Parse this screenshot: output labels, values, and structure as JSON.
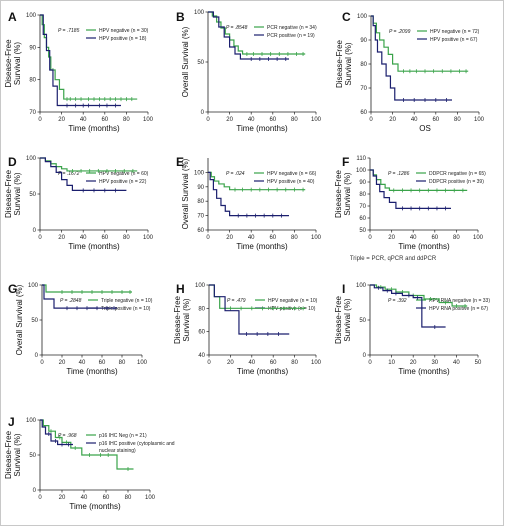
{
  "colors": {
    "green": "#3aa34a",
    "navy": "#1b1f6e",
    "axis": "#222222"
  },
  "panels": [
    {
      "letter": "A",
      "ylabel": [
        "Disease-Free",
        "Survival (%)"
      ],
      "xlabel": "Time (months)",
      "p": "P = .7185",
      "xticks": [
        0,
        20,
        40,
        60,
        80,
        100
      ],
      "yticks": [
        70,
        80,
        90,
        100
      ],
      "ylim": [
        70,
        100
      ],
      "legend": [
        "HPV negative (n = 30)",
        "HPV positive (n = 18)"
      ],
      "series": [
        {
          "color": "green",
          "steps": [
            [
              0,
              100
            ],
            [
              2,
              97
            ],
            [
              4,
              93
            ],
            [
              6,
              90
            ],
            [
              8,
              87
            ],
            [
              10,
              83
            ],
            [
              14,
              80
            ],
            [
              18,
              77
            ],
            [
              22,
              74
            ],
            [
              90,
              74
            ]
          ],
          "censor": [
            12,
            25,
            28,
            33,
            38,
            45,
            50,
            55,
            60,
            65,
            70,
            75,
            80,
            85
          ]
        },
        {
          "color": "navy",
          "steps": [
            [
              0,
              100
            ],
            [
              3,
              94
            ],
            [
              6,
              89
            ],
            [
              9,
              83
            ],
            [
              12,
              78
            ],
            [
              16,
              72
            ],
            [
              75,
              72
            ]
          ],
          "censor": [
            25,
            33,
            40,
            45,
            55,
            62,
            70
          ]
        }
      ]
    },
    {
      "letter": "B",
      "ylabel": [
        "Overall Survival (%)"
      ],
      "xlabel": "Time (months)",
      "p": "P = .8548",
      "xticks": [
        0,
        20,
        40,
        60,
        80,
        100
      ],
      "yticks": [
        0,
        50,
        100
      ],
      "ylim": [
        0,
        100
      ],
      "legend": [
        "PCR negative (n = 34)",
        "PCR positive (n = 19)"
      ],
      "series": [
        {
          "color": "green",
          "steps": [
            [
              0,
              100
            ],
            [
              4,
              96
            ],
            [
              8,
              90
            ],
            [
              12,
              84
            ],
            [
              16,
              78
            ],
            [
              20,
              72
            ],
            [
              24,
              66
            ],
            [
              28,
              61
            ],
            [
              32,
              58
            ],
            [
              90,
              58
            ]
          ],
          "censor": [
            36,
            42,
            50,
            58,
            66,
            74,
            82,
            88
          ]
        },
        {
          "color": "navy",
          "steps": [
            [
              0,
              100
            ],
            [
              5,
              95
            ],
            [
              10,
              85
            ],
            [
              15,
              75
            ],
            [
              20,
              65
            ],
            [
              25,
              58
            ],
            [
              30,
              53
            ],
            [
              75,
              53
            ]
          ],
          "censor": [
            40,
            48,
            56,
            64,
            72
          ]
        }
      ]
    },
    {
      "letter": "C",
      "ylabel": [
        "Disease-Free",
        "Survival (%)"
      ],
      "xlabel": "OS",
      "p": "P = .2099",
      "xticks": [
        0,
        20,
        40,
        60,
        80,
        100
      ],
      "yticks": [
        60,
        70,
        80,
        90,
        100
      ],
      "ylim": [
        60,
        100
      ],
      "legend": [
        "HPV negative (n = 72)",
        "HPV positive (n = 67)"
      ],
      "series": [
        {
          "color": "green",
          "steps": [
            [
              0,
              100
            ],
            [
              2,
              97
            ],
            [
              5,
              93
            ],
            [
              8,
              90
            ],
            [
              12,
              87
            ],
            [
              16,
              84
            ],
            [
              20,
              80
            ],
            [
              25,
              77
            ],
            [
              90,
              77
            ]
          ],
          "censor": [
            30,
            36,
            42,
            50,
            58,
            66,
            74,
            82,
            88
          ]
        },
        {
          "color": "navy",
          "steps": [
            [
              0,
              100
            ],
            [
              2,
              96
            ],
            [
              4,
              90
            ],
            [
              6,
              85
            ],
            [
              10,
              80
            ],
            [
              14,
              75
            ],
            [
              18,
              70
            ],
            [
              22,
              65
            ],
            [
              75,
              65
            ]
          ],
          "censor": [
            30,
            40,
            50,
            60,
            70
          ]
        }
      ]
    },
    {
      "letter": "D",
      "ylabel": [
        "Disease-Free",
        "Survival (%)"
      ],
      "xlabel": "Time (months)",
      "p": "P = .1672",
      "xticks": [
        0,
        20,
        40,
        60,
        80,
        100
      ],
      "yticks": [
        0,
        50,
        100
      ],
      "ylim": [
        0,
        100
      ],
      "legend": [
        "HPV negative (n = 60)",
        "HPV positive (n = 22)"
      ],
      "series": [
        {
          "color": "green",
          "steps": [
            [
              0,
              100
            ],
            [
              5,
              96
            ],
            [
              10,
              92
            ],
            [
              15,
              88
            ],
            [
              20,
              85
            ],
            [
              25,
              82
            ],
            [
              90,
              82
            ]
          ],
          "censor": [
            30,
            38,
            46,
            54,
            62,
            70,
            78,
            86
          ]
        },
        {
          "color": "navy",
          "steps": [
            [
              0,
              100
            ],
            [
              5,
              95
            ],
            [
              10,
              88
            ],
            [
              15,
              80
            ],
            [
              20,
              70
            ],
            [
              25,
              62
            ],
            [
              30,
              55
            ],
            [
              80,
              55
            ]
          ],
          "censor": [
            40,
            50,
            60,
            70
          ]
        }
      ]
    },
    {
      "letter": "E",
      "ylabel": [
        "Overall Survival (%)"
      ],
      "xlabel": "Time (months)",
      "p": "P = .024",
      "xticks": [
        0,
        20,
        40,
        60,
        80,
        100
      ],
      "yticks": [
        60,
        70,
        80,
        90,
        100
      ],
      "ylim": [
        60,
        110
      ],
      "legend": [
        "HPV negative (n = 66)",
        "HPV positive (n = 40)"
      ],
      "series": [
        {
          "color": "green",
          "steps": [
            [
              0,
              100
            ],
            [
              3,
              97
            ],
            [
              6,
              94
            ],
            [
              10,
              92
            ],
            [
              15,
              90
            ],
            [
              20,
              88
            ],
            [
              90,
              88
            ]
          ],
          "censor": [
            25,
            32,
            40,
            48,
            56,
            64,
            72,
            80,
            88
          ]
        },
        {
          "color": "navy",
          "steps": [
            [
              0,
              100
            ],
            [
              2,
              95
            ],
            [
              5,
              88
            ],
            [
              8,
              82
            ],
            [
              12,
              77
            ],
            [
              16,
              73
            ],
            [
              20,
              70
            ],
            [
              75,
              70
            ]
          ],
          "censor": [
            28,
            36,
            44,
            52,
            60,
            68
          ]
        }
      ]
    },
    {
      "letter": "F",
      "ylabel": [
        "Disease-Free",
        "Survival (%)"
      ],
      "xlabel": "Time (months)",
      "p": "P = .1286",
      "xticks": [
        0,
        20,
        40,
        60,
        80,
        100
      ],
      "yticks": [
        50,
        60,
        70,
        80,
        90,
        100,
        110
      ],
      "ylim": [
        50,
        110
      ],
      "legend": [
        "DDPCR negative (n = 65)",
        "DDPCR positive (n = 39)"
      ],
      "series": [
        {
          "color": "green",
          "steps": [
            [
              0,
              100
            ],
            [
              3,
              96
            ],
            [
              6,
              92
            ],
            [
              10,
              88
            ],
            [
              14,
              85
            ],
            [
              18,
              83
            ],
            [
              90,
              83
            ]
          ],
          "censor": [
            22,
            30,
            38,
            46,
            54,
            62,
            70,
            78,
            86
          ]
        },
        {
          "color": "navy",
          "steps": [
            [
              0,
              100
            ],
            [
              3,
              95
            ],
            [
              6,
              88
            ],
            [
              9,
              82
            ],
            [
              13,
              77
            ],
            [
              18,
              73
            ],
            [
              24,
              68
            ],
            [
              75,
              68
            ]
          ],
          "censor": [
            30,
            38,
            46,
            54,
            62,
            70
          ]
        }
      ]
    },
    {
      "letter": "G",
      "ylabel": [
        "Overall Survival (%)"
      ],
      "xlabel": "Time (months)",
      "p": "P = .2848",
      "xticks": [
        0,
        20,
        40,
        60,
        80,
        100
      ],
      "yticks": [
        0,
        50,
        100
      ],
      "ylim": [
        0,
        100
      ],
      "legend": [
        "Triple negative (n = 10)",
        "Triple positive (n = 10)"
      ],
      "series": [
        {
          "color": "green",
          "steps": [
            [
              0,
              100
            ],
            [
              4,
              90
            ],
            [
              90,
              90
            ]
          ],
          "censor": [
            20,
            30,
            40,
            50,
            60,
            70,
            80,
            88
          ]
        },
        {
          "color": "navy",
          "steps": [
            [
              0,
              100
            ],
            [
              2,
              80
            ],
            [
              12,
              67
            ],
            [
              75,
              67
            ]
          ],
          "censor": [
            25,
            35,
            45,
            55,
            65,
            72
          ]
        }
      ]
    },
    {
      "letter": "H",
      "ylabel": [
        "Disease-Free",
        "Survival (%)"
      ],
      "xlabel": "Time (months)",
      "p": "P = .479",
      "xticks": [
        0,
        20,
        40,
        60,
        80,
        100
      ],
      "yticks": [
        40,
        60,
        80,
        100
      ],
      "ylim": [
        40,
        100
      ],
      "legend": [
        "HPV negative (n = 10)",
        "HPV positive (n = 10)"
      ],
      "series": [
        {
          "color": "green",
          "steps": [
            [
              0,
              100
            ],
            [
              5,
              90
            ],
            [
              10,
              80
            ],
            [
              90,
              80
            ]
          ],
          "censor": [
            20,
            30,
            40,
            50,
            60,
            70,
            80,
            88
          ]
        },
        {
          "color": "navy",
          "steps": [
            [
              0,
              100
            ],
            [
              5,
              90
            ],
            [
              15,
              78
            ],
            [
              28,
              58
            ],
            [
              75,
              58
            ]
          ],
          "censor": [
            35,
            45,
            55,
            65
          ]
        }
      ]
    },
    {
      "letter": "I",
      "ylabel": [
        "Disease-Free",
        "Survival (%)"
      ],
      "xlabel": "Time (months)",
      "p": "P = .392",
      "xticks": [
        0,
        10,
        20,
        30,
        40,
        50
      ],
      "yticks": [
        0,
        50,
        100
      ],
      "ylim": [
        0,
        100
      ],
      "legend": [
        "HPV RNA negative (n = 33)",
        "HPV RNA positive (n = 67)"
      ],
      "series": [
        {
          "color": "green",
          "steps": [
            [
              0,
              100
            ],
            [
              3,
              97
            ],
            [
              7,
              94
            ],
            [
              12,
              90
            ],
            [
              18,
              85
            ],
            [
              25,
              80
            ],
            [
              32,
              75
            ],
            [
              38,
              70
            ],
            [
              45,
              70
            ]
          ],
          "censor": [
            5,
            10,
            15,
            20,
            28,
            35,
            40,
            44
          ]
        },
        {
          "color": "navy",
          "steps": [
            [
              0,
              100
            ],
            [
              2,
              96
            ],
            [
              6,
              92
            ],
            [
              10,
              88
            ],
            [
              15,
              85
            ],
            [
              20,
              82
            ],
            [
              24,
              40
            ],
            [
              35,
              40
            ]
          ],
          "censor": [
            4,
            8,
            12,
            18,
            22,
            30
          ]
        }
      ]
    },
    {
      "letter": "J",
      "ylabel": [
        "Disease-Free",
        "Survival (%)"
      ],
      "xlabel": "Time (months)",
      "p": "P = .968",
      "xticks": [
        0,
        20,
        40,
        60,
        80,
        100
      ],
      "yticks": [
        0,
        50,
        100
      ],
      "ylim": [
        0,
        100
      ],
      "legend": [
        "p16 IHC Neg (n = 21)",
        "p16 IHC positive (cytoplasmic and",
        "nuclear staining)"
      ],
      "series": [
        {
          "color": "green",
          "steps": [
            [
              0,
              100
            ],
            [
              3,
              92
            ],
            [
              8,
              84
            ],
            [
              14,
              75
            ],
            [
              20,
              68
            ],
            [
              28,
              60
            ],
            [
              38,
              50
            ],
            [
              68,
              50
            ],
            [
              70,
              30
            ],
            [
              85,
              30
            ]
          ],
          "censor": [
            10,
            18,
            24,
            32,
            45,
            55,
            62,
            80
          ]
        },
        {
          "color": "navy",
          "steps": [
            [
              0,
              100
            ],
            [
              2,
              90
            ],
            [
              5,
              80
            ],
            [
              10,
              70
            ],
            [
              16,
              65
            ],
            [
              30,
              65
            ]
          ],
          "censor": [
            8,
            14,
            20,
            26
          ]
        }
      ]
    }
  ],
  "footnote": "Triple = PCR, qPCR and ddPCR"
}
